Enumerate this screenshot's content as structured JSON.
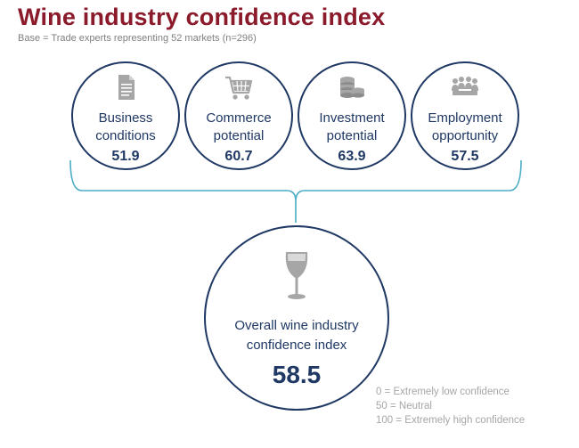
{
  "title": "Wine industry confidence index",
  "subtitle": "Base = Trade experts representing 52 markets (n=296)",
  "colors": {
    "title": "#8b1a2b",
    "navy": "#1f3864",
    "brace": "#4bacc6",
    "icon": "#a6a6a6",
    "note": "#a6a6a6"
  },
  "components": [
    {
      "line1": "Business",
      "line2": "conditions",
      "value": "51.9",
      "icon": "document-icon"
    },
    {
      "line1": "Commerce",
      "line2": "potential",
      "value": "60.7",
      "icon": "shopping-cart-icon"
    },
    {
      "line1": "Investment",
      "line2": "potential",
      "value": "63.9",
      "icon": "coins-icon"
    },
    {
      "line1": "Employment",
      "line2": "opportunity",
      "value": "57.5",
      "icon": "people-icon"
    }
  ],
  "overall": {
    "line1": "Overall wine industry",
    "line2": "confidence index",
    "value": "58.5",
    "icon": "wine-glass-icon"
  },
  "scale": [
    "0 = Extremely low confidence",
    "50 = Neutral",
    "100 = Extremely high confidence"
  ]
}
